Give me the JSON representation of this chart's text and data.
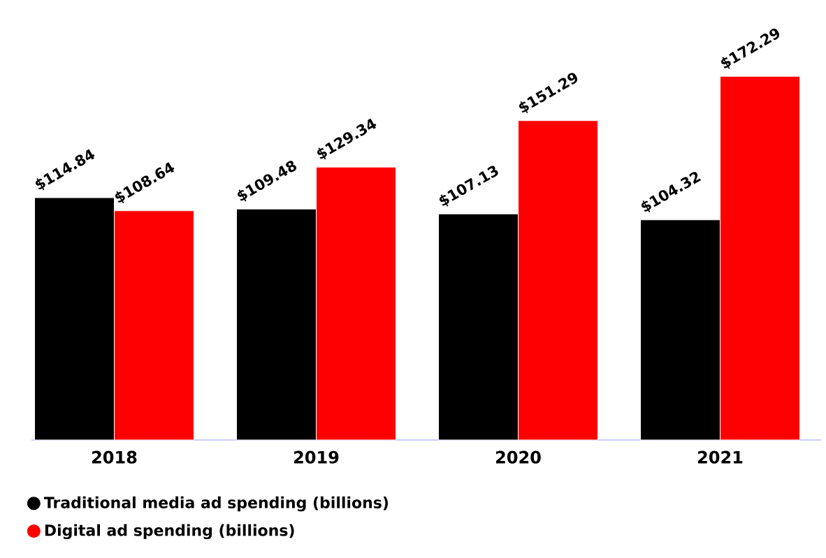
{
  "chart_data": {
    "type": "bar",
    "categories": [
      "2018",
      "2019",
      "2020",
      "2021"
    ],
    "series": [
      {
        "name": "Traditional media ad spending (billions)",
        "color": "#000000",
        "values": [
          114.84,
          109.48,
          107.13,
          104.32
        ],
        "value_labels": [
          "$114.84",
          "$109.48",
          "$107.13",
          "$104.32"
        ]
      },
      {
        "name": "Digital ad spending (billions)",
        "color": "#ff0000",
        "values": [
          108.64,
          129.34,
          151.29,
          172.29
        ],
        "value_labels": [
          "$108.64",
          "$129.34",
          "$151.29",
          "$172.29"
        ]
      }
    ],
    "legend": "bottom"
  }
}
